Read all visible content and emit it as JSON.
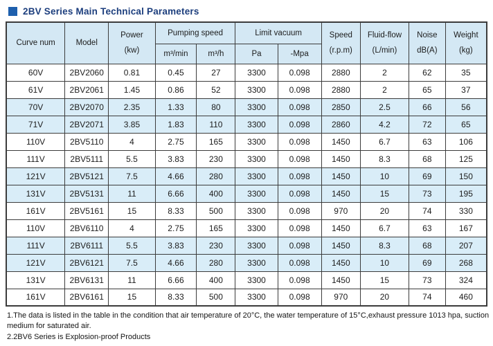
{
  "page": {
    "title": "2BV Series Main Technical Parameters",
    "accent_color": "#1e5fad",
    "title_color": "#1c3e7d",
    "header_bg": "#d4e8f4",
    "shaded_row_bg": "#d9edf8"
  },
  "table": {
    "header": {
      "curve_num": "Curve num",
      "model": "Model",
      "power_line1": "Power",
      "power_line2": "(kw)",
      "pumping_speed": "Pumping speed",
      "m3min": "m³/min",
      "m3h": "m³/h",
      "limit_vacuum": "Limit vacuum",
      "pa": "Pa",
      "mpa": "-Mpa",
      "speed_line1": "Speed",
      "speed_line2": "(r.p.m)",
      "fluid_line1": "Fluid-flow",
      "fluid_line2": "(L/min)",
      "noise_line1": "Noise",
      "noise_line2": "dB(A)",
      "weight_line1": "Weight",
      "weight_line2": "(kg)"
    },
    "rows": [
      {
        "curve": "60V",
        "model": "2BV2060",
        "power": "0.81",
        "m3min": "0.45",
        "m3h": "27",
        "pa": "3300",
        "mpa": "0.098",
        "speed": "2880",
        "fluid": "2",
        "noise": "62",
        "weight": "35",
        "shaded": false
      },
      {
        "curve": "61V",
        "model": "2BV2061",
        "power": "1.45",
        "m3min": "0.86",
        "m3h": "52",
        "pa": "3300",
        "mpa": "0.098",
        "speed": "2880",
        "fluid": "2",
        "noise": "65",
        "weight": "37",
        "shaded": false
      },
      {
        "curve": "70V",
        "model": "2BV2070",
        "power": "2.35",
        "m3min": "1.33",
        "m3h": "80",
        "pa": "3300",
        "mpa": "0.098",
        "speed": "2850",
        "fluid": "2.5",
        "noise": "66",
        "weight": "56",
        "shaded": true
      },
      {
        "curve": "71V",
        "model": "2BV2071",
        "power": "3.85",
        "m3min": "1.83",
        "m3h": "110",
        "pa": "3300",
        "mpa": "0.098",
        "speed": "2860",
        "fluid": "4.2",
        "noise": "72",
        "weight": "65",
        "shaded": true
      },
      {
        "curve": "110V",
        "model": "2BV5110",
        "power": "4",
        "m3min": "2.75",
        "m3h": "165",
        "pa": "3300",
        "mpa": "0.098",
        "speed": "1450",
        "fluid": "6.7",
        "noise": "63",
        "weight": "106",
        "shaded": false
      },
      {
        "curve": "111V",
        "model": "2BV5111",
        "power": "5.5",
        "m3min": "3.83",
        "m3h": "230",
        "pa": "3300",
        "mpa": "0.098",
        "speed": "1450",
        "fluid": "8.3",
        "noise": "68",
        "weight": "125",
        "shaded": false
      },
      {
        "curve": "121V",
        "model": "2BV5121",
        "power": "7.5",
        "m3min": "4.66",
        "m3h": "280",
        "pa": "3300",
        "mpa": "0.098",
        "speed": "1450",
        "fluid": "10",
        "noise": "69",
        "weight": "150",
        "shaded": true
      },
      {
        "curve": "131V",
        "model": "2BV5131",
        "power": "11",
        "m3min": "6.66",
        "m3h": "400",
        "pa": "3300",
        "mpa": "0.098",
        "speed": "1450",
        "fluid": "15",
        "noise": "73",
        "weight": "195",
        "shaded": true
      },
      {
        "curve": "161V",
        "model": "2BV5161",
        "power": "15",
        "m3min": "8.33",
        "m3h": "500",
        "pa": "3300",
        "mpa": "0.098",
        "speed": "970",
        "fluid": "20",
        "noise": "74",
        "weight": "330",
        "shaded": false
      },
      {
        "curve": "110V",
        "model": "2BV6110",
        "power": "4",
        "m3min": "2.75",
        "m3h": "165",
        "pa": "3300",
        "mpa": "0.098",
        "speed": "1450",
        "fluid": "6.7",
        "noise": "63",
        "weight": "167",
        "shaded": false
      },
      {
        "curve": "111V",
        "model": "2BV6111",
        "power": "5.5",
        "m3min": "3.83",
        "m3h": "230",
        "pa": "3300",
        "mpa": "0.098",
        "speed": "1450",
        "fluid": "8.3",
        "noise": "68",
        "weight": "207",
        "shaded": true
      },
      {
        "curve": "121V",
        "model": "2BV6121",
        "power": "7.5",
        "m3min": "4.66",
        "m3h": "280",
        "pa": "3300",
        "mpa": "0.098",
        "speed": "1450",
        "fluid": "10",
        "noise": "69",
        "weight": "268",
        "shaded": true
      },
      {
        "curve": "131V",
        "model": "2BV6131",
        "power": "11",
        "m3min": "6.66",
        "m3h": "400",
        "pa": "3300",
        "mpa": "0.098",
        "speed": "1450",
        "fluid": "15",
        "noise": "73",
        "weight": "324",
        "shaded": false
      },
      {
        "curve": "161V",
        "model": "2BV6161",
        "power": "15",
        "m3min": "8.33",
        "m3h": "500",
        "pa": "3300",
        "mpa": "0.098",
        "speed": "970",
        "fluid": "20",
        "noise": "74",
        "weight": "460",
        "shaded": false
      }
    ]
  },
  "notes": [
    "1.The data is listed in the table in the condition that air temperature of 20°C, the water temperature of 15°C,exhaust pressure 1013 hpa, suction medium for saturated air.",
    "2.2BV6 Series is Explosion-proof Products"
  ]
}
